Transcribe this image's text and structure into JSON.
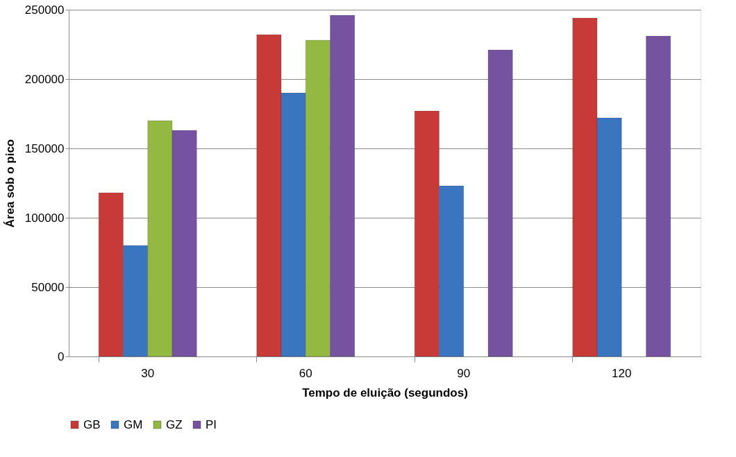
{
  "chart_data": {
    "type": "bar",
    "xlabel": "Tempo de eluição (segundos)",
    "ylabel": "Área sob o pico",
    "categories": [
      "30",
      "60",
      "90",
      "120"
    ],
    "series": [
      {
        "name": "GB",
        "color": "#c83a38",
        "values": [
          118000,
          232000,
          177000,
          244000
        ]
      },
      {
        "name": "GM",
        "color": "#3a76c0",
        "values": [
          80000,
          190000,
          123000,
          172000
        ]
      },
      {
        "name": "GZ",
        "color": "#93b943",
        "values": [
          170000,
          228000,
          null,
          null
        ]
      },
      {
        "name": "PI",
        "color": "#7553a0",
        "values": [
          163000,
          246000,
          221000,
          231000
        ]
      }
    ],
    "ylim": [
      0,
      250000
    ],
    "yticks": [
      0,
      50000,
      100000,
      150000,
      200000,
      250000
    ],
    "grid": "y",
    "legend": "bottom"
  }
}
